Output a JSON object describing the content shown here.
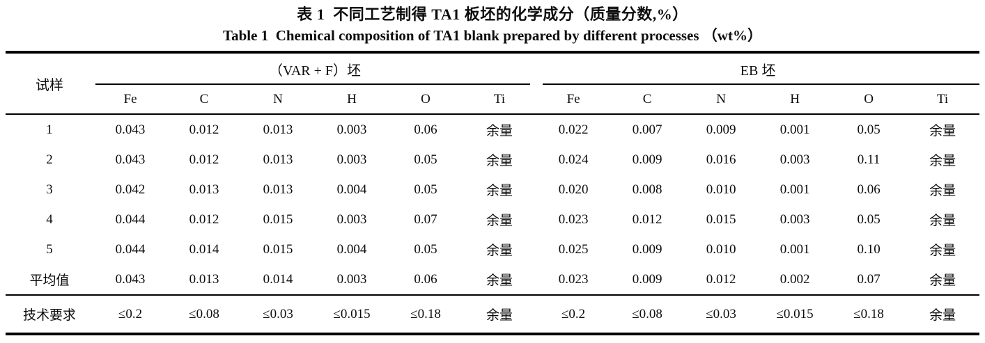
{
  "caption": {
    "zh": "表 1  不同工艺制得 TA1 板坯的化学成分（质量分数,%）",
    "en": "Table 1  Chemical composition of TA1 blank prepared by different processes （wt%）"
  },
  "table": {
    "sample_header": "试样",
    "groups": [
      {
        "label": "（VAR + F）坯",
        "columns": [
          "Fe",
          "C",
          "N",
          "H",
          "O",
          "Ti"
        ]
      },
      {
        "label": "EB 坯",
        "columns": [
          "Fe",
          "C",
          "N",
          "H",
          "O",
          "Ti"
        ]
      }
    ],
    "rows": [
      {
        "label": "1",
        "var_f": [
          "0.043",
          "0.012",
          "0.013",
          "0.003",
          "0.06",
          "余量"
        ],
        "eb": [
          "0.022",
          "0.007",
          "0.009",
          "0.001",
          "0.05",
          "余量"
        ]
      },
      {
        "label": "2",
        "var_f": [
          "0.043",
          "0.012",
          "0.013",
          "0.003",
          "0.05",
          "余量"
        ],
        "eb": [
          "0.024",
          "0.009",
          "0.016",
          "0.003",
          "0.11",
          "余量"
        ]
      },
      {
        "label": "3",
        "var_f": [
          "0.042",
          "0.013",
          "0.013",
          "0.004",
          "0.05",
          "余量"
        ],
        "eb": [
          "0.020",
          "0.008",
          "0.010",
          "0.001",
          "0.06",
          "余量"
        ]
      },
      {
        "label": "4",
        "var_f": [
          "0.044",
          "0.012",
          "0.015",
          "0.003",
          "0.07",
          "余量"
        ],
        "eb": [
          "0.023",
          "0.012",
          "0.015",
          "0.003",
          "0.05",
          "余量"
        ]
      },
      {
        "label": "5",
        "var_f": [
          "0.044",
          "0.014",
          "0.015",
          "0.004",
          "0.05",
          "余量"
        ],
        "eb": [
          "0.025",
          "0.009",
          "0.010",
          "0.001",
          "0.10",
          "余量"
        ]
      },
      {
        "label": "平均值",
        "var_f": [
          "0.043",
          "0.013",
          "0.014",
          "0.003",
          "0.06",
          "余量"
        ],
        "eb": [
          "0.023",
          "0.009",
          "0.012",
          "0.002",
          "0.07",
          "余量"
        ]
      }
    ],
    "requirement_row": {
      "label": "技术要求",
      "var_f": [
        "≤0.2",
        "≤0.08",
        "≤0.03",
        "≤0.015",
        "≤0.18",
        "余量"
      ],
      "eb": [
        "≤0.2",
        "≤0.08",
        "≤0.03",
        "≤0.015",
        "≤0.18",
        "余量"
      ]
    }
  }
}
